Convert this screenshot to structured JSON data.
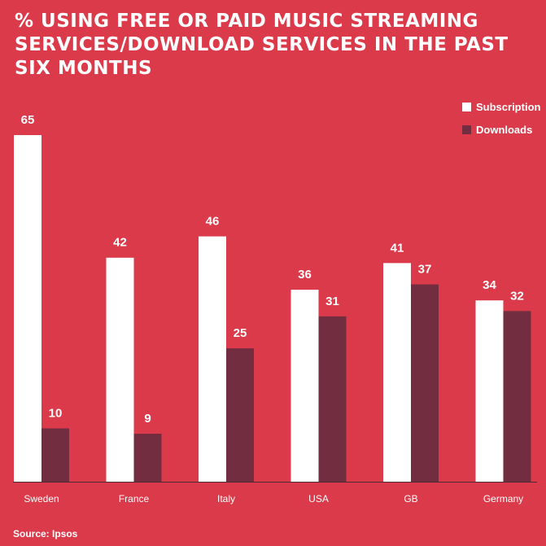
{
  "chart_data": {
    "type": "bar",
    "title": "% USING FREE OR PAID MUSIC STREAMING SERVICES/DOWNLOAD SERVICES IN THE PAST SIX MONTHS",
    "categories": [
      "Sweden",
      "France",
      "Italy",
      "USA",
      "GB",
      "Germany"
    ],
    "series": [
      {
        "name": "Subscription",
        "values": [
          65,
          42,
          46,
          36,
          41,
          34
        ],
        "color": "#ffffff"
      },
      {
        "name": "Downloads",
        "values": [
          10,
          9,
          25,
          31,
          37,
          32
        ],
        "color": "#722d40"
      }
    ],
    "ylim": [
      0,
      65
    ],
    "legend_position": "top-right",
    "grid": false,
    "source": "Source: Ipsos"
  },
  "colors": {
    "background": "#db3a4a",
    "axis": "#4a2a32"
  }
}
